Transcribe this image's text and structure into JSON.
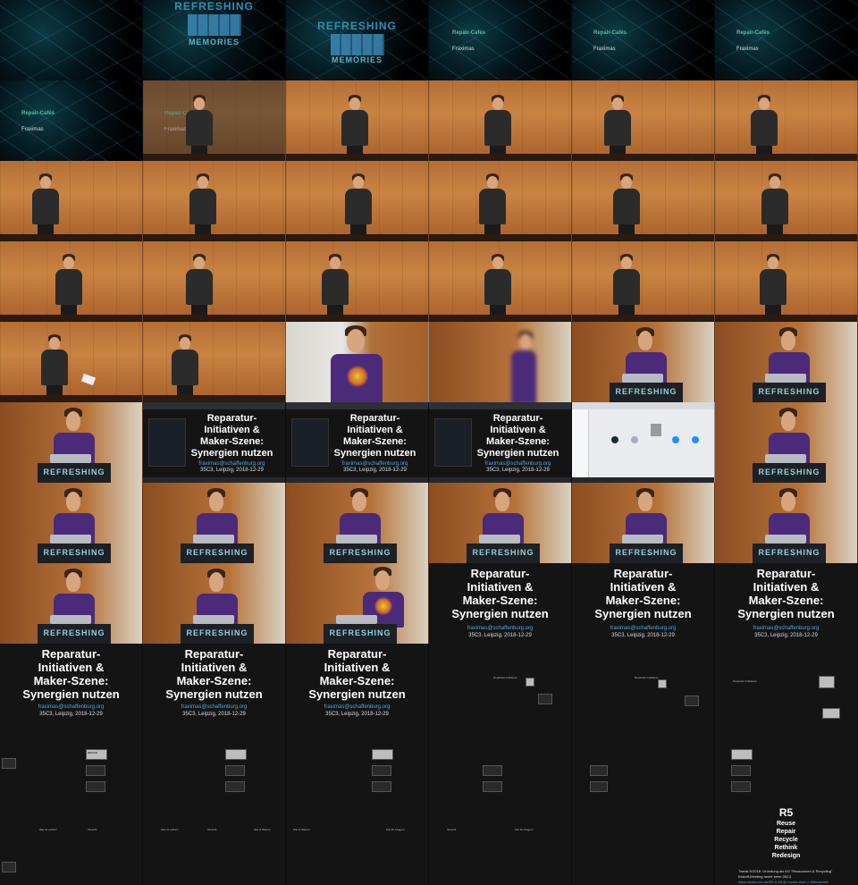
{
  "logo": {
    "line1": "REFRESHING",
    "line2": "MEMORIES"
  },
  "podium_brand": "REFRESHING",
  "repair_cafe": {
    "title": "Repair-Cafés",
    "name": "Fraximas"
  },
  "title_slide": {
    "title_lines": [
      "Reparatur-",
      "Initiativen &",
      "Maker-Szene:",
      "Synergien nutzen"
    ],
    "email": "fraximas@schaffenburg.org",
    "event": "35C3, Leipzig, 2018-12-29"
  },
  "overview_mini": [
    "Reparatur-Initiativen",
    "REPAIR",
    "Gruppen",
    "Wer ist selbst?",
    "Was ist Maker",
    "Tauscht",
    "Wer & Warum",
    "Zeit für Fragen!"
  ],
  "r5_slide": {
    "title": "R5",
    "items": [
      "Reuse",
      "Repair",
      "Recycle",
      "Rethink",
      "Redesign"
    ],
    "bullets": [
      "Tweak 5/2018: Gründung als AG \"Ressourcen & Recycling\"",
      "Kickoff-Meeting heute beim 35C3",
      "https://doku.ccc.de/R5 & #5 @ rocket.chat -> Mitmachen!"
    ]
  },
  "colors": {
    "accent_cyan": "#2d8fb1",
    "repair_green": "#3fc9a0",
    "link_blue": "#4aa8e2",
    "slide_bg": "#141414",
    "stage_wood": "#c98443"
  }
}
